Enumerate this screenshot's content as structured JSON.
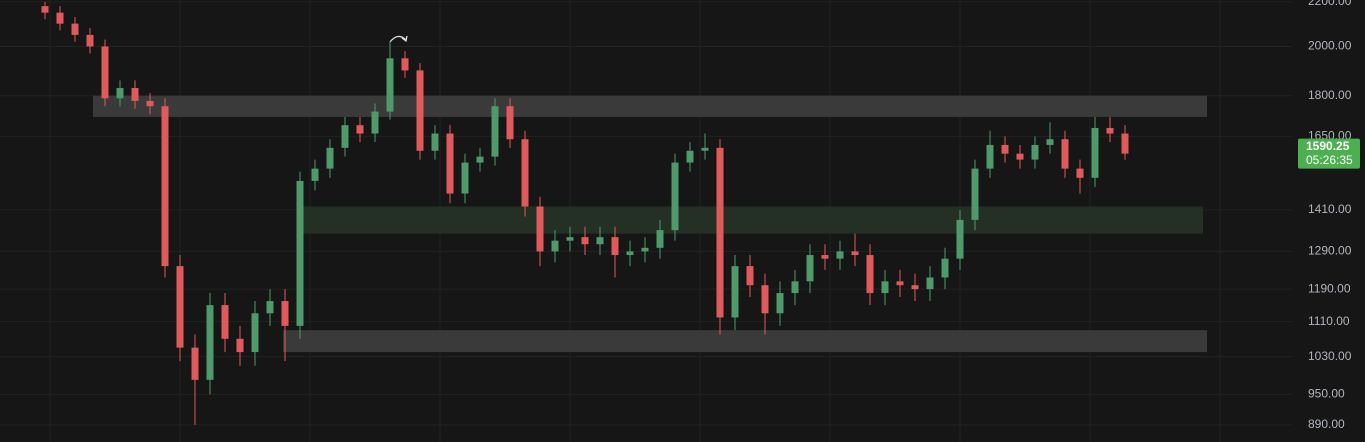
{
  "chart_data": {
    "type": "candlestick",
    "log_scale": true,
    "grid": true,
    "up_color": "#4e9a6b",
    "down_color": "#e05a5c",
    "ylim": [
      858,
      2209
    ],
    "yticks": [
      {
        "value": 890,
        "label": "890.00"
      },
      {
        "value": 950,
        "label": "950.00"
      },
      {
        "value": 1030,
        "label": "1030.00"
      },
      {
        "value": 1110,
        "label": "1110.00"
      },
      {
        "value": 1190,
        "label": "1190.00"
      },
      {
        "value": 1290,
        "label": "1290.00"
      },
      {
        "value": 1410,
        "label": "1410.00"
      },
      {
        "value": 1650,
        "label": "1650.00"
      },
      {
        "value": 1800,
        "label": "1800.00"
      },
      {
        "value": 2000,
        "label": "2000.00"
      },
      {
        "value": 2200,
        "label": "2200.00"
      }
    ],
    "open": [
      2180,
      2150,
      2100,
      2050,
      2000,
      1790,
      1830,
      1780,
      1760,
      1250,
      1050,
      980,
      1150,
      1070,
      1040,
      1130,
      1160,
      1100,
      1500,
      1540,
      1610,
      1690,
      1660,
      1740,
      1950,
      1900,
      1600,
      1660,
      1460,
      1560,
      1580,
      1760,
      1640,
      1420,
      1290,
      1320,
      1330,
      1310,
      1330,
      1280,
      1290,
      1300,
      1350,
      1560,
      1600,
      1610,
      1120,
      1250,
      1200,
      1130,
      1180,
      1210,
      1280,
      1270,
      1290,
      1280,
      1180,
      1210,
      1200,
      1190,
      1220,
      1270,
      1380,
      1540,
      1620,
      1590,
      1570,
      1620,
      1640,
      1540,
      1510,
      1680,
      1660
    ],
    "high": [
      2200,
      2180,
      2130,
      2080,
      2030,
      1860,
      1860,
      1810,
      1790,
      1280,
      1080,
      1180,
      1180,
      1100,
      1160,
      1190,
      1190,
      1530,
      1570,
      1640,
      1720,
      1720,
      1770,
      2020,
      1980,
      1930,
      1690,
      1690,
      1590,
      1610,
      1790,
      1790,
      1670,
      1450,
      1350,
      1360,
      1360,
      1360,
      1360,
      1320,
      1330,
      1380,
      1590,
      1630,
      1660,
      1640,
      1280,
      1280,
      1230,
      1210,
      1240,
      1310,
      1310,
      1320,
      1340,
      1310,
      1240,
      1240,
      1230,
      1250,
      1300,
      1410,
      1570,
      1670,
      1650,
      1620,
      1650,
      1700,
      1670,
      1570,
      1720,
      1720,
      1690
    ],
    "low": [
      2120,
      2070,
      2020,
      1970,
      1760,
      1760,
      1750,
      1730,
      1220,
      1020,
      890,
      950,
      1040,
      1010,
      1010,
      1100,
      1020,
      1070,
      1470,
      1510,
      1580,
      1630,
      1630,
      1710,
      1870,
      1570,
      1570,
      1430,
      1430,
      1530,
      1550,
      1610,
      1390,
      1250,
      1260,
      1290,
      1280,
      1280,
      1220,
      1250,
      1260,
      1270,
      1320,
      1530,
      1570,
      1080,
      1090,
      1170,
      1080,
      1100,
      1150,
      1180,
      1240,
      1240,
      1250,
      1150,
      1150,
      1170,
      1160,
      1160,
      1190,
      1240,
      1350,
      1510,
      1560,
      1540,
      1540,
      1590,
      1510,
      1460,
      1480,
      1630,
      1570
    ],
    "close": [
      2150,
      2100,
      2050,
      2000,
      1790,
      1830,
      1780,
      1760,
      1250,
      1050,
      980,
      1150,
      1070,
      1040,
      1130,
      1160,
      1100,
      1500,
      1540,
      1610,
      1690,
      1660,
      1740,
      1950,
      1900,
      1600,
      1660,
      1460,
      1560,
      1580,
      1760,
      1640,
      1420,
      1290,
      1320,
      1330,
      1310,
      1330,
      1280,
      1290,
      1300,
      1350,
      1560,
      1600,
      1610,
      1120,
      1250,
      1200,
      1130,
      1180,
      1210,
      1280,
      1270,
      1290,
      1280,
      1180,
      1210,
      1200,
      1190,
      1220,
      1270,
      1380,
      1540,
      1620,
      1590,
      1570,
      1620,
      1640,
      1540,
      1510,
      1680,
      1660,
      1590.25
    ],
    "zones": [
      {
        "low": 1720,
        "high": 1800,
        "color": "#3a3a3a"
      },
      {
        "low": 1340,
        "high": 1420,
        "color": "#253024"
      },
      {
        "low": 1040,
        "high": 1090,
        "color": "#3a3a3a"
      }
    ],
    "countdown": "05:26:35",
    "price_label_color": "#4caf50"
  }
}
